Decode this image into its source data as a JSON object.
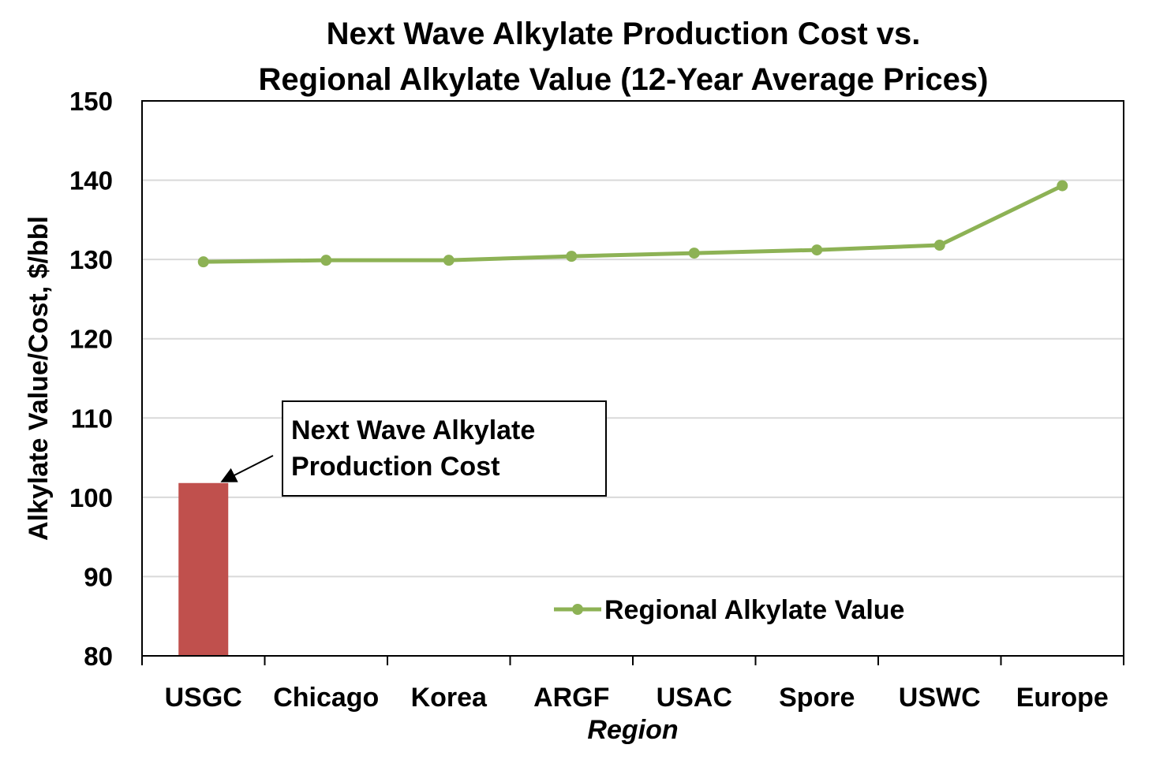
{
  "chart_data": {
    "type": "bar+line",
    "title_line1": "Next Wave Alkylate Production Cost vs.",
    "title_line2": "Regional Alkylate Value (12-Year Average Prices)",
    "xlabel": "Region",
    "ylabel": "Alkylate Value/Cost, $/bbl",
    "ylim": [
      80,
      150
    ],
    "yticks": [
      80,
      90,
      100,
      110,
      120,
      130,
      140,
      150
    ],
    "grid": true,
    "categories": [
      "USGC",
      "Chicago",
      "Korea",
      "ARGF",
      "USAC",
      "Spore",
      "USWC",
      "Europe"
    ],
    "series": [
      {
        "name": "Regional Alkylate Value",
        "type": "line",
        "color": "#8DB255",
        "values": [
          129.7,
          129.9,
          129.9,
          130.4,
          130.8,
          131.2,
          131.8,
          139.3
        ]
      },
      {
        "name": "Next Wave Alkylate Production Cost",
        "type": "bar",
        "color": "#C0504D",
        "category": "USGC",
        "value": 101.8
      }
    ],
    "annotation": {
      "line1": "Next Wave Alkylate",
      "line2": "Production Cost",
      "points_to": "USGC"
    },
    "legend": {
      "label": "Regional Alkylate Value",
      "placement": "bottom-right"
    }
  }
}
